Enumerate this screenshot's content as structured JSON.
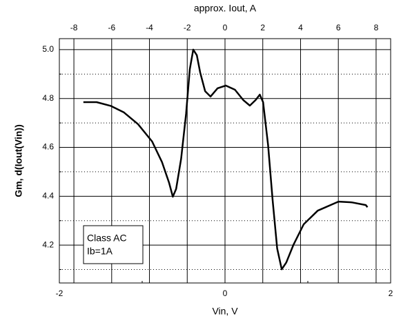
{
  "chart_data": {
    "type": "line",
    "x_label": "Vin, V",
    "x2_label": "approx. Iout, A",
    "y_label": "Gm, d(Iout(Vin))",
    "xlim": [
      -2,
      2
    ],
    "xticks": [
      -2,
      0,
      2
    ],
    "xminorticks": [
      -1,
      1
    ],
    "x2lim": [
      -8.77,
      8.77
    ],
    "x2ticks": [
      -8,
      -6,
      -4,
      -2,
      0,
      2,
      4,
      6,
      8
    ],
    "ylim": [
      4.045,
      5.045
    ],
    "yticks": [
      4.2,
      4.4,
      4.6,
      4.8,
      {
        "value": 5,
        "label": "5.0"
      }
    ],
    "y_minor_gridlines": [
      4.1,
      4.3,
      4.5,
      4.7,
      4.9
    ],
    "grid": true,
    "legend_lines": [
      "Class AC",
      "Ib=1A"
    ],
    "series": [
      {
        "color": "#000000",
        "x": [
          -1.71,
          -1.55,
          -1.38,
          -1.22,
          -1.05,
          -0.88,
          -0.76,
          -0.675,
          -0.63,
          -0.59,
          -0.53,
          -0.47,
          -0.425,
          -0.383,
          -0.34,
          -0.3,
          -0.24,
          -0.175,
          -0.09,
          0.01,
          0.12,
          0.22,
          0.3,
          0.37,
          0.42,
          0.46,
          0.52,
          0.575,
          0.63,
          0.685,
          0.74,
          0.825,
          0.95,
          1.12,
          1.37,
          1.53,
          1.7,
          1.72
        ],
        "values": [
          4.785,
          4.785,
          4.77,
          4.743,
          4.695,
          4.624,
          4.539,
          4.455,
          4.398,
          4.43,
          4.553,
          4.737,
          4.92,
          5.0,
          4.977,
          4.907,
          4.83,
          4.808,
          4.842,
          4.853,
          4.836,
          4.794,
          4.771,
          4.794,
          4.816,
          4.785,
          4.61,
          4.384,
          4.186,
          4.101,
          4.129,
          4.2,
          4.285,
          4.341,
          4.378,
          4.375,
          4.364,
          4.355
        ]
      }
    ]
  }
}
